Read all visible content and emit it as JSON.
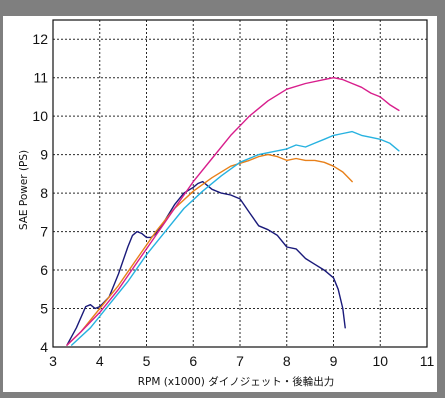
{
  "chart_data": {
    "type": "line",
    "title": "",
    "xlabel": "RPM (x1000) ダイノジェット・後輪出力",
    "ylabel": "SAE Power (PS)",
    "xlim": [
      3,
      11
    ],
    "ylim": [
      4,
      12.5
    ],
    "x_ticks": [
      "3",
      "4",
      "5",
      "6",
      "7",
      "8",
      "9",
      "10",
      "11"
    ],
    "y_ticks": [
      "4",
      "5",
      "6",
      "7",
      "8",
      "9",
      "10",
      "11",
      "12"
    ],
    "grid": true,
    "legend": "none",
    "series": [
      {
        "color": "#1a1a7a",
        "x": [
          3.3,
          3.5,
          3.7,
          3.8,
          3.9,
          4.0,
          4.2,
          4.4,
          4.6,
          4.7,
          4.8,
          4.9,
          5.0,
          5.1,
          5.2,
          5.4,
          5.6,
          5.8,
          6.0,
          6.1,
          6.2,
          6.3,
          6.4,
          6.6,
          6.8,
          7.0,
          7.2,
          7.4,
          7.6,
          7.8,
          8.0,
          8.2,
          8.4,
          8.6,
          8.8,
          9.0,
          9.1,
          9.2,
          9.25
        ],
        "y": [
          4.05,
          4.5,
          5.05,
          5.1,
          5.0,
          5.05,
          5.3,
          5.9,
          6.6,
          6.9,
          7.0,
          6.95,
          6.85,
          6.85,
          6.95,
          7.3,
          7.7,
          8.0,
          8.15,
          8.25,
          8.3,
          8.2,
          8.1,
          8.0,
          7.95,
          7.85,
          7.5,
          7.15,
          7.05,
          6.9,
          6.6,
          6.55,
          6.3,
          6.15,
          6.0,
          5.8,
          5.5,
          5.0,
          4.5
        ]
      },
      {
        "color": "#e8801a",
        "x": [
          3.3,
          3.6,
          4.0,
          4.4,
          4.8,
          5.2,
          5.6,
          6.0,
          6.4,
          6.8,
          7.2,
          7.4,
          7.6,
          7.8,
          8.0,
          8.2,
          8.4,
          8.6,
          8.8,
          9.0,
          9.2,
          9.4
        ],
        "y": [
          4.05,
          4.4,
          5.0,
          5.6,
          6.3,
          7.0,
          7.6,
          8.05,
          8.4,
          8.7,
          8.85,
          8.95,
          9.0,
          8.95,
          8.85,
          8.9,
          8.85,
          8.85,
          8.8,
          8.7,
          8.55,
          8.3
        ]
      },
      {
        "color": "#27b2e0",
        "x": [
          3.4,
          3.8,
          4.2,
          4.6,
          5.0,
          5.4,
          5.8,
          6.2,
          6.6,
          7.0,
          7.4,
          7.8,
          8.0,
          8.2,
          8.4,
          8.6,
          8.8,
          9.0,
          9.2,
          9.4,
          9.6,
          9.8,
          10.0,
          10.2,
          10.4
        ],
        "y": [
          4.05,
          4.5,
          5.1,
          5.7,
          6.4,
          7.0,
          7.6,
          8.05,
          8.45,
          8.8,
          9.0,
          9.1,
          9.15,
          9.25,
          9.2,
          9.3,
          9.4,
          9.5,
          9.55,
          9.6,
          9.5,
          9.45,
          9.4,
          9.3,
          9.1
        ]
      },
      {
        "color": "#d81e8c",
        "x": [
          3.3,
          3.6,
          4.0,
          4.4,
          4.8,
          5.2,
          5.6,
          6.0,
          6.4,
          6.8,
          7.2,
          7.6,
          8.0,
          8.4,
          8.8,
          9.0,
          9.2,
          9.4,
          9.6,
          9.8,
          10.0,
          10.2,
          10.4
        ],
        "y": [
          4.05,
          4.4,
          4.9,
          5.5,
          6.2,
          6.9,
          7.6,
          8.3,
          8.9,
          9.5,
          10.0,
          10.4,
          10.7,
          10.85,
          10.95,
          11.0,
          10.95,
          10.85,
          10.75,
          10.6,
          10.5,
          10.3,
          10.15
        ]
      }
    ]
  },
  "colors": {
    "frame": "#7f7f7f",
    "plot_background": "#ffffff",
    "grid": "#2a2a2a"
  }
}
